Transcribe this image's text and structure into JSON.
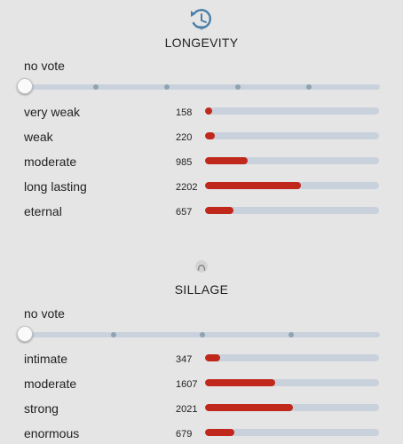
{
  "colors": {
    "background": "#e5e5e5",
    "bar_fill": "#c0281c",
    "bar_track": "#c9d2dc",
    "icon_blue": "#4a7fa8"
  },
  "longevity": {
    "icon": "clock-refresh-icon",
    "title": "LONGEVITY",
    "vote_label": "no vote",
    "slider_steps": 5,
    "slider_value": 0,
    "max_count": 4000,
    "options": [
      {
        "label": "very weak",
        "count": "158"
      },
      {
        "label": "weak",
        "count": "220"
      },
      {
        "label": "moderate",
        "count": "985"
      },
      {
        "label": "long lasting",
        "count": "2202"
      },
      {
        "label": "eternal",
        "count": "657"
      }
    ]
  },
  "sillage": {
    "icon": "sillage-icon",
    "title": "SILLAGE",
    "vote_label": "no vote",
    "slider_steps": 4,
    "slider_value": 0,
    "max_count": 4000,
    "options": [
      {
        "label": "intimate",
        "count": "347"
      },
      {
        "label": "moderate",
        "count": "1607"
      },
      {
        "label": "strong",
        "count": "2021"
      },
      {
        "label": "enormous",
        "count": "679"
      }
    ]
  }
}
